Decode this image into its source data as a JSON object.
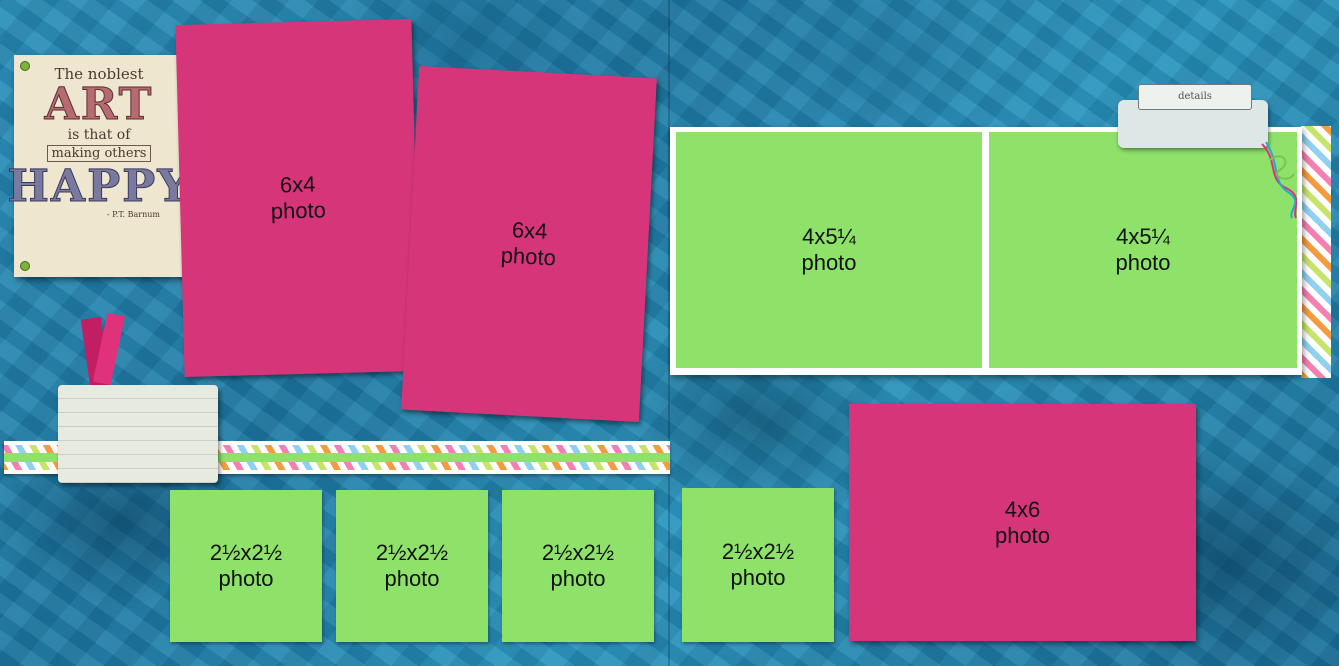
{
  "quote_card": {
    "line1": "The noblest",
    "line2": "ART",
    "line3": "is that of",
    "line4": "making others",
    "line5": "HAPPY",
    "line6": "- P.T. Barnum"
  },
  "details_label": "details",
  "photos": [
    {
      "size": "6x4",
      "label": "photo",
      "color": "#d7357a"
    },
    {
      "size": "6x4",
      "label": "photo",
      "color": "#d7357a"
    },
    {
      "size": "4x5¼",
      "label": "photo",
      "color": "#8ee26a"
    },
    {
      "size": "4x5¼",
      "label": "photo",
      "color": "#8ee26a"
    },
    {
      "size": "2½x2½",
      "label": "photo",
      "color": "#8ee26a"
    },
    {
      "size": "2½x2½",
      "label": "photo",
      "color": "#8ee26a"
    },
    {
      "size": "2½x2½",
      "label": "photo",
      "color": "#8ee26a"
    },
    {
      "size": "2½x2½",
      "label": "photo",
      "color": "#8ee26a"
    },
    {
      "size": "4x6",
      "label": "photo",
      "color": "#d7357a"
    }
  ],
  "colors": {
    "background": "#2a8fb8",
    "pink_mat": "#d7357a",
    "green_mat": "#8ee26a"
  }
}
